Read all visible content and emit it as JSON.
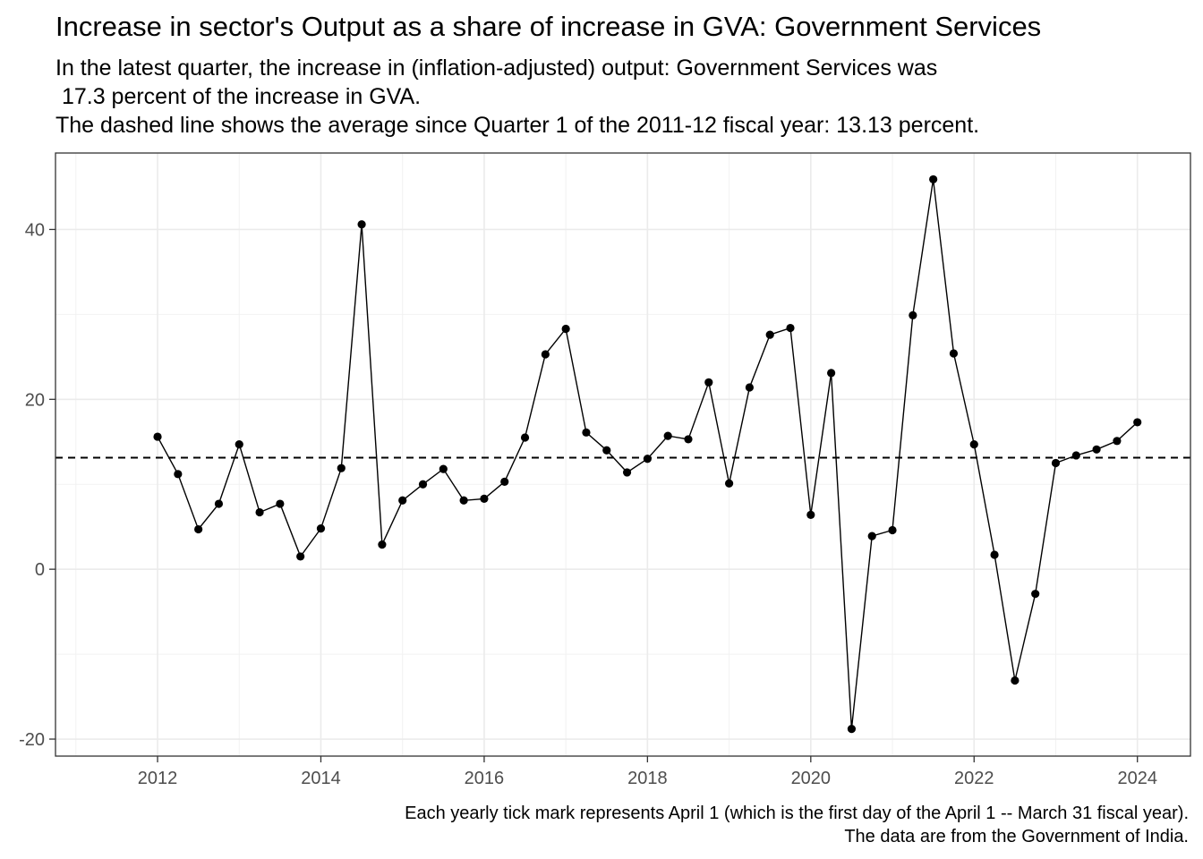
{
  "chart_data": {
    "type": "line",
    "title": "Increase in sector's Output as a share of increase in GVA: Government Services",
    "subtitle_lines": [
      "In the latest quarter, the increase in (inflation-adjusted) output: Government Services was",
      " 17.3 percent of the increase in GVA.",
      "The dashed line shows the average since Quarter 1 of the 2011-12 fiscal year: 13.13 percent."
    ],
    "caption_lines": [
      "Each yearly tick mark represents April 1 (which is the first day of the April 1 -- March 31 fiscal year).",
      "The data are from the Government of India."
    ],
    "xlabel": "",
    "ylabel": "",
    "x_ticks": [
      2012,
      2014,
      2016,
      2018,
      2020,
      2022,
      2024
    ],
    "y_ticks": [
      -20,
      0,
      20,
      40
    ],
    "xlim": [
      2010.75,
      2024.65
    ],
    "ylim": [
      -22,
      49
    ],
    "grid": true,
    "average_line": 13.13,
    "series": [
      {
        "x": [
          2012.0,
          2012.25,
          2012.5,
          2012.75,
          2013.0,
          2013.25,
          2013.5,
          2013.75,
          2014.0,
          2014.25,
          2014.5,
          2014.75,
          2015.0,
          2015.25,
          2015.5,
          2015.75,
          2016.0,
          2016.25,
          2016.5,
          2016.75,
          2017.0,
          2017.25,
          2017.5,
          2017.75,
          2018.0,
          2018.25,
          2018.5,
          2018.75,
          2019.0,
          2019.25,
          2019.5,
          2019.75,
          2020.0,
          2020.25,
          2020.5,
          2020.75,
          2021.0,
          2021.25,
          2021.5,
          2021.75,
          2022.0,
          2022.25,
          2022.5,
          2022.75,
          2023.0,
          2023.25,
          2023.5,
          2023.75,
          2024.0
        ],
        "values": [
          15.6,
          11.2,
          4.7,
          7.7,
          14.7,
          6.7,
          7.7,
          1.5,
          4.8,
          11.9,
          40.6,
          2.9,
          8.1,
          10.0,
          11.8,
          8.1,
          8.3,
          10.3,
          15.5,
          25.3,
          28.3,
          16.1,
          14.0,
          11.4,
          13.0,
          15.7,
          15.3,
          22.0,
          10.1,
          21.4,
          27.6,
          28.4,
          6.4,
          23.1,
          -18.8,
          3.9,
          4.6,
          29.9,
          45.9,
          25.4,
          14.7,
          1.7,
          -13.1,
          -2.9,
          12.5,
          13.4,
          14.1,
          15.1,
          17.3
        ]
      }
    ]
  }
}
